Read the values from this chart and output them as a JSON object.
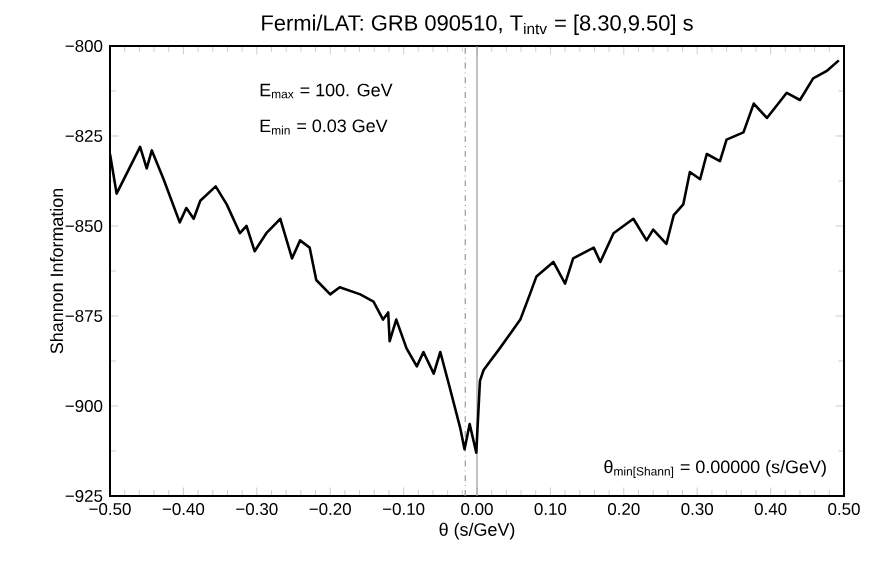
{
  "chart_data": {
    "type": "line",
    "title": "Fermi/LAT:  GRB 090510, T$_{intv}$ = [8.30,9.50] s",
    "xlabel": "θ (s/GeV)",
    "ylabel": "Shannon Information",
    "annotations": [
      "E$_{max}$ = 100. GeV",
      "E$_{min}$ = 0.03 GeV",
      "θ$_{min[Shann]}$ = 0.00000 (s/GeV)"
    ],
    "series": [
      {
        "color": "#000000",
        "x": [
          -0.5,
          -0.491,
          -0.459,
          -0.45,
          -0.443,
          -0.427,
          -0.405,
          -0.396,
          -0.386,
          -0.377,
          -0.356,
          -0.341,
          -0.323,
          -0.314,
          -0.303,
          -0.287,
          -0.268,
          -0.252,
          -0.241,
          -0.228,
          -0.219,
          -0.2,
          -0.187,
          -0.159,
          -0.141,
          -0.128,
          -0.121,
          -0.119,
          -0.11,
          -0.096,
          -0.082,
          -0.073,
          -0.059,
          -0.05,
          -0.037,
          -0.023,
          -0.017,
          -0.01,
          -0.001,
          0.004,
          0.009,
          0.031,
          0.045,
          0.059,
          0.072,
          0.081,
          0.104,
          0.12,
          0.131,
          0.159,
          0.168,
          0.186,
          0.213,
          0.231,
          0.24,
          0.258,
          0.268,
          0.281,
          0.29,
          0.304,
          0.313,
          0.331,
          0.34,
          0.363,
          0.377,
          0.395,
          0.422,
          0.44,
          0.458,
          0.476,
          0.493
        ],
        "values": [
          -830,
          -841,
          -828,
          -834,
          -829,
          -837,
          -849,
          -845,
          -848,
          -843,
          -839,
          -844,
          -852,
          -850,
          -857,
          -852,
          -848,
          -859,
          -854,
          -856,
          -865,
          -869,
          -867,
          -869,
          -871,
          -876,
          -874,
          -882,
          -876,
          -884,
          -889,
          -885,
          -891,
          -885,
          -895,
          -906,
          -912,
          -905,
          -913,
          -893,
          -890,
          -884,
          -880,
          -876,
          -869,
          -864,
          -860,
          -866,
          -859,
          -856,
          -860,
          -852,
          -848,
          -854,
          -851,
          -855,
          -847,
          -844,
          -835,
          -837,
          -830,
          -832,
          -826,
          -824,
          -816,
          -820,
          -813,
          -815,
          -809,
          -807,
          -804
        ]
      }
    ],
    "xlim": [
      -0.5,
      0.5
    ],
    "ylim": [
      -925,
      -800
    ],
    "xticks": [
      {
        "value": -0.5,
        "label": "−0.50"
      },
      {
        "value": -0.4,
        "label": "−0.40"
      },
      {
        "value": -0.3,
        "label": "−0.30"
      },
      {
        "value": -0.2,
        "label": "−0.20"
      },
      {
        "value": -0.1,
        "label": "−0.10"
      },
      {
        "value": 0,
        "label": "0.00"
      },
      {
        "value": 0.1,
        "label": "0.10"
      },
      {
        "value": 0.2,
        "label": "0.20"
      },
      {
        "value": 0.3,
        "label": "0.30"
      },
      {
        "value": 0.4,
        "label": "0.40"
      },
      {
        "value": 0.5,
        "label": "0.50"
      }
    ],
    "yticks": [
      {
        "value": -800,
        "label": "−800"
      },
      {
        "value": -825,
        "label": "−825"
      },
      {
        "value": -850,
        "label": "−850"
      },
      {
        "value": -875,
        "label": "−875"
      },
      {
        "value": -900,
        "label": "−900"
      },
      {
        "value": -925,
        "label": "−925"
      }
    ],
    "ref_lines": [
      {
        "axis": "x",
        "value": 0,
        "color": "#999999",
        "line_style": "solid"
      },
      {
        "axis": "x",
        "value": -0.016,
        "color": "#999999",
        "line_style": "dashdot"
      }
    ],
    "grid": false,
    "marker": "none",
    "line_style": "solid"
  }
}
